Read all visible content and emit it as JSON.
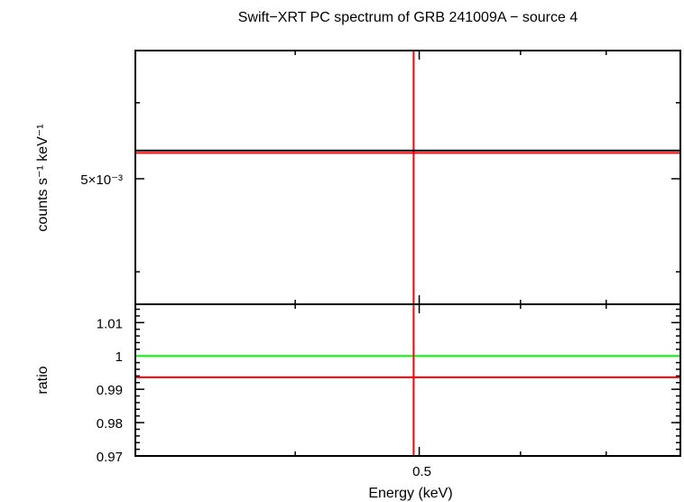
{
  "chart_data": [
    {
      "type": "line",
      "panel": "spectrum",
      "title": "Swift−XRT PC spectrum of GRB 241009A − source 4",
      "ylabel": "counts s⁻¹ keV⁻¹",
      "y_scale": "log",
      "ylim": [
        0.0037,
        0.0068
      ],
      "y_major_ticks": [
        {
          "value": 0.005,
          "label": "5×10⁻³"
        }
      ],
      "y_minor_ticks": [
        0.004,
        0.006
      ],
      "x_scale": "log",
      "xlim": [
        0.3,
        0.8
      ],
      "x_ticks": [
        {
          "value": 0.5,
          "label": "0.5"
        }
      ],
      "x_minor_ticks": [
        0.4,
        0.6,
        0.7
      ],
      "series": [
        {
          "role": "data",
          "color": "#ff0000",
          "x": [
            0.3,
            0.8
          ],
          "y": [
            0.00532,
            0.00532
          ],
          "x_error_bar": [
            0.495,
            0.495
          ],
          "y_error_bar": [
            0.0037,
            0.0068
          ]
        },
        {
          "role": "model",
          "color": "#000000",
          "x": [
            0.3,
            0.8
          ],
          "y": [
            0.00535,
            0.00535
          ]
        }
      ]
    },
    {
      "type": "line",
      "panel": "ratio",
      "ylabel": "ratio",
      "xlabel": "Energy (keV)",
      "y_scale": "linear",
      "ylim": [
        0.97,
        1.0155
      ],
      "y_ticks": [
        {
          "value": 0.97,
          "label": "0.97"
        },
        {
          "value": 0.98,
          "label": "0.98"
        },
        {
          "value": 0.99,
          "label": "0.99"
        },
        {
          "value": 1.0,
          "label": "1"
        },
        {
          "value": 1.01,
          "label": "1.01"
        }
      ],
      "x_scale": "log",
      "xlim": [
        0.3,
        0.8
      ],
      "series": [
        {
          "role": "unity",
          "color": "#00ff00",
          "x": [
            0.3,
            0.8
          ],
          "y": [
            1.0,
            1.0
          ]
        },
        {
          "role": "data",
          "color": "#ff0000",
          "x": [
            0.3,
            0.8
          ],
          "y": [
            0.9936,
            0.9936
          ],
          "x_error_bar": [
            0.495,
            0.495
          ],
          "y_error_bar": [
            0.97,
            1.0155
          ]
        }
      ]
    }
  ]
}
